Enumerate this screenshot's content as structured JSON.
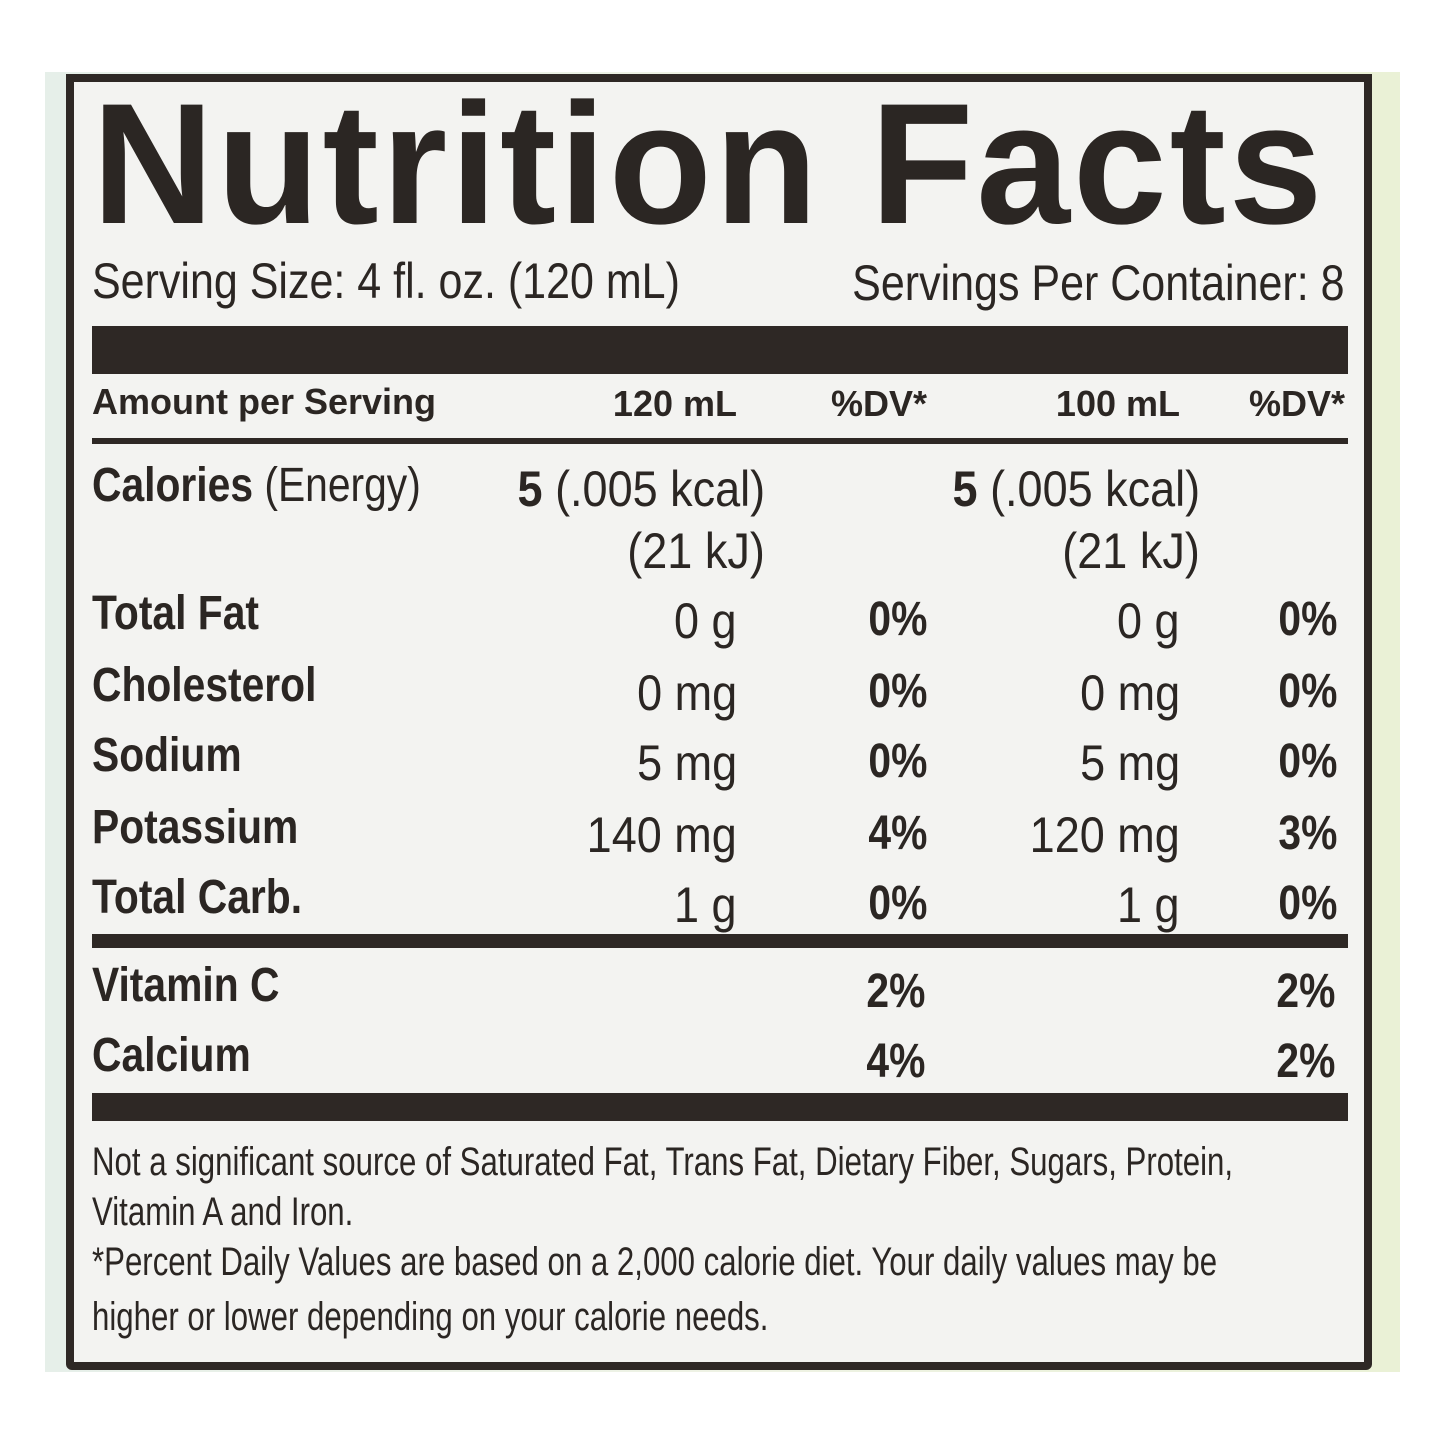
{
  "title": "Nutrition Facts",
  "serving_size": "Serving Size: 4 fl. oz. (120 mL)",
  "servings_per_container": "Servings Per Container: 8",
  "header": {
    "amount": "Amount per Serving",
    "col1": "120 mL",
    "dv1": "%DV*",
    "col2": "100 mL",
    "dv2": "%DV*"
  },
  "calories": {
    "label": "Calories",
    "label_sub": "(Energy)",
    "v1": "5",
    "v1_kcal": "(.005 kcal)",
    "v1_kj": "(21 kJ)",
    "v2": "5",
    "v2_kcal": "(.005 kcal)",
    "v2_kj": "(21 kJ)"
  },
  "nutrients": [
    {
      "name": "Total Fat",
      "v1": "0 g",
      "dv1": "0%",
      "v2": "0 g",
      "dv2": "0%"
    },
    {
      "name": "Cholesterol",
      "v1": "0 mg",
      "dv1": "0%",
      "v2": "0 mg",
      "dv2": "0%"
    },
    {
      "name": "Sodium",
      "v1": "5 mg",
      "dv1": "0%",
      "v2": "5 mg",
      "dv2": "0%"
    },
    {
      "name": "Potassium",
      "v1": "140 mg",
      "dv1": "4%",
      "v2": "120 mg",
      "dv2": "3%"
    },
    {
      "name": "Total Carb.",
      "v1": "1 g",
      "dv1": "0%",
      "v2": "1 g",
      "dv2": "0%"
    }
  ],
  "vitamins": [
    {
      "name": "Vitamin C",
      "dv1": "2%",
      "dv2": "2%"
    },
    {
      "name": "Calcium",
      "dv1": "4%",
      "dv2": "2%"
    }
  ],
  "footnotes": [
    "Not a significant source of Saturated Fat, Trans Fat, Dietary Fiber, Sugars, Protein,",
    "Vitamin A and Iron.",
    "*Percent Daily Values are based on a 2,000 calorie diet. Your daily values may be",
    "higher or lower depending on your calorie needs."
  ],
  "colors": {
    "ink": "#2b2623",
    "label_bg": "#f3f3f1",
    "backdrop": "#eaf1d6"
  }
}
